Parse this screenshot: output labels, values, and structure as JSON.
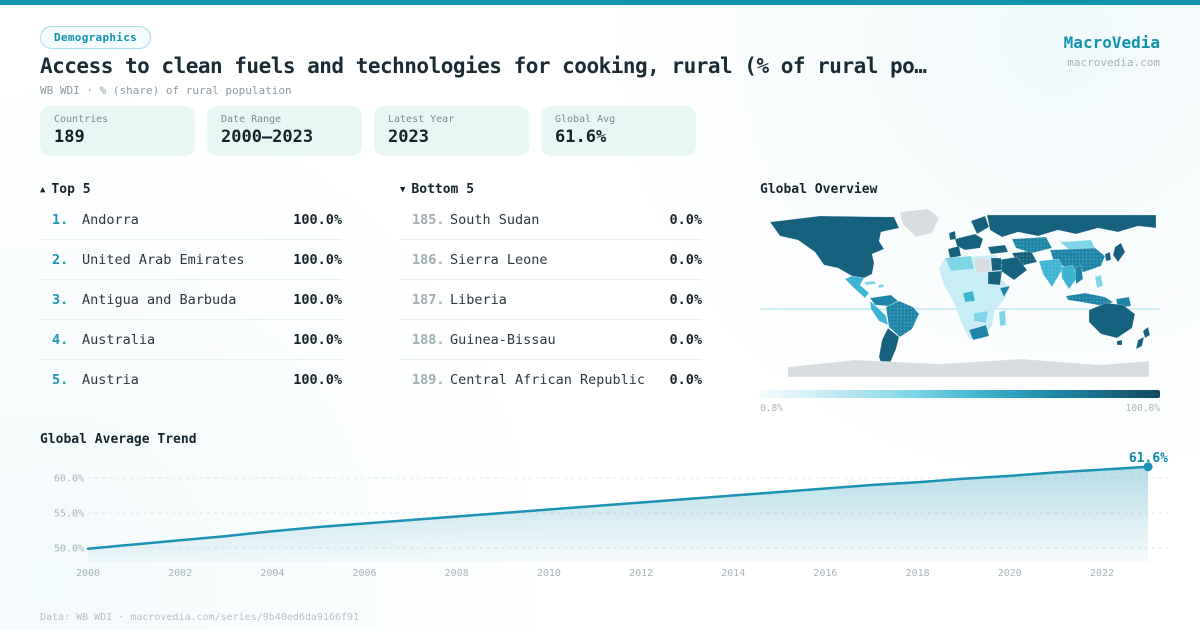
{
  "brand": {
    "badge": "Demographics",
    "name": "MacroVedia",
    "domain": "macrovedia.com"
  },
  "header": {
    "title": "Access to clean fuels and technologies for cooking, rural (% of rural po…",
    "subtitle": "WB WDI · % (share) of rural population"
  },
  "stats": [
    {
      "label": "Countries",
      "value": "189"
    },
    {
      "label": "Date Range",
      "value": "2000—2023"
    },
    {
      "label": "Latest Year",
      "value": "2023"
    },
    {
      "label": "Global Avg",
      "value": "61.6%"
    }
  ],
  "top5": {
    "arrow": "▲",
    "title": "Top 5",
    "items": [
      {
        "rank": "1.",
        "name": "Andorra",
        "value": "100.0%"
      },
      {
        "rank": "2.",
        "name": "United Arab Emirates",
        "value": "100.0%"
      },
      {
        "rank": "3.",
        "name": "Antigua and Barbuda",
        "value": "100.0%"
      },
      {
        "rank": "4.",
        "name": "Australia",
        "value": "100.0%"
      },
      {
        "rank": "5.",
        "name": "Austria",
        "value": "100.0%"
      }
    ]
  },
  "bottom5": {
    "arrow": "▼",
    "title": "Bottom 5",
    "items": [
      {
        "rank": "185.",
        "name": "South Sudan",
        "value": "0.0%"
      },
      {
        "rank": "186.",
        "name": "Sierra Leone",
        "value": "0.0%"
      },
      {
        "rank": "187.",
        "name": "Liberia",
        "value": "0.0%"
      },
      {
        "rank": "188.",
        "name": "Guinea-Bissau",
        "value": "0.0%"
      },
      {
        "rank": "189.",
        "name": "Central African Republic",
        "value": "0.0%"
      }
    ]
  },
  "chart_data": [
    {
      "type": "area",
      "title": "Global Average Trend",
      "x": [
        2000,
        2001,
        2002,
        2003,
        2004,
        2005,
        2006,
        2007,
        2008,
        2009,
        2010,
        2011,
        2012,
        2013,
        2014,
        2015,
        2016,
        2017,
        2018,
        2019,
        2020,
        2021,
        2022,
        2023
      ],
      "values": [
        49.9,
        50.5,
        51.1,
        51.7,
        52.4,
        53.0,
        53.5,
        54.0,
        54.5,
        55.0,
        55.5,
        56.0,
        56.5,
        57.0,
        57.5,
        58.0,
        58.5,
        59.0,
        59.4,
        59.9,
        60.3,
        60.8,
        61.2,
        61.6
      ],
      "ylabel": "% of rural population",
      "ylim": [
        48.5,
        63.0
      ],
      "yticks": [
        50,
        55,
        60
      ],
      "ytick_labels": [
        "50.0%",
        "55.0%",
        "60.0%"
      ],
      "xticks": [
        2000,
        2002,
        2004,
        2006,
        2008,
        2010,
        2012,
        2014,
        2016,
        2018,
        2020,
        2022
      ],
      "grid": "dashed-horizontal",
      "legend_position": "none",
      "end_label": "61.6%"
    },
    {
      "type": "heatmap",
      "subtype": "world-choropleth",
      "title": "Global Overview",
      "legend_min": "0.8%",
      "legend_max": "100.0%",
      "known_values": {
        "Andorra": 100.0,
        "United Arab Emirates": 100.0,
        "Antigua and Barbuda": 100.0,
        "Australia": 100.0,
        "Austria": 100.0,
        "South Sudan": 0.0,
        "Sierra Leone": 0.0,
        "Liberia": 0.0,
        "Guinea-Bissau": 0.0,
        "Central African Republic": 0.0
      }
    }
  ],
  "footer": {
    "text": "Data: WB WDI · macrovedia.com/series/9b40ed6da9166f91"
  },
  "colors": {
    "teal": "#0f93ae",
    "title": "#1b2b33",
    "muted": "#8e9ca4",
    "card-bg": "#e8f6f4",
    "rank-top": "#1a94b6",
    "rank-bottom": "#9fadb4",
    "divider": "#eaeff2",
    "value": "#14232b",
    "trend-line": "#1b93b4",
    "trend-label": "#0e89a9",
    "axis": "#a7b4bb",
    "footer": "#b7c2c9",
    "map-dark": "#16617d",
    "map-mid": "#1f85a6",
    "map-cyan": "#3db4d2",
    "map-light": "#7fd5e7",
    "map-pale": "#c9edf6",
    "map-gray": "#d8dde1",
    "legend-start": "#f3fbfd",
    "legend-end": "#124a60"
  }
}
